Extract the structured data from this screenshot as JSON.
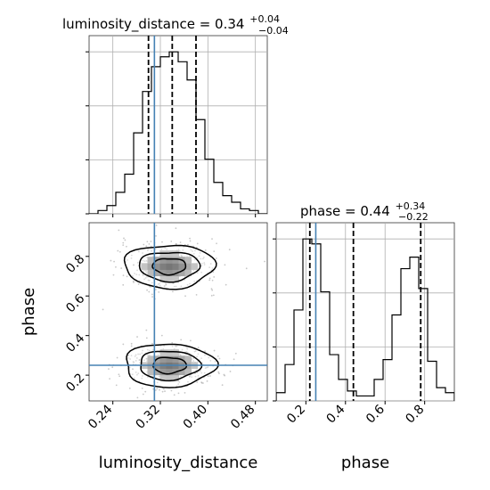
{
  "chart_data": {
    "type": "corner",
    "parameters": [
      {
        "name": "luminosity_distance",
        "xlabel": "luminosity_distance",
        "title_main": "luminosity_distance = 0.34",
        "title_sup": "+0.04",
        "title_sub": "−0.04",
        "xlim": [
          0.2,
          0.5
        ],
        "ticks": [
          0.24,
          0.32,
          0.4,
          0.48
        ],
        "tick_labels": [
          "0.24",
          "0.32",
          "0.40",
          "0.48"
        ],
        "quantiles": [
          0.3,
          0.34,
          0.38
        ],
        "truth": 0.31,
        "hist_bins": [
          0.2,
          0.215,
          0.23,
          0.245,
          0.26,
          0.275,
          0.29,
          0.305,
          0.32,
          0.335,
          0.35,
          0.365,
          0.38,
          0.395,
          0.41,
          0.425,
          0.44,
          0.455,
          0.47,
          0.485,
          0.5
        ],
        "hist_counts": [
          0,
          2,
          5,
          13,
          24,
          49,
          74,
          89,
          95,
          98,
          92,
          81,
          57,
          33,
          19,
          11,
          7,
          3,
          2,
          0
        ]
      },
      {
        "name": "phase",
        "xlabel": "phase",
        "ylabel": "phase",
        "title_main": "phase = 0.44",
        "title_sup": "+0.34",
        "title_sub": "−0.22",
        "xlim": [
          0.05,
          0.95
        ],
        "ticks": [
          0.2,
          0.4,
          0.6,
          0.8
        ],
        "tick_labels": [
          "0.2",
          "0.4",
          "0.6",
          "0.8"
        ],
        "quantiles": [
          0.22,
          0.44,
          0.78
        ],
        "truth": 0.25,
        "hist_bins": [
          0.05,
          0.095,
          0.14,
          0.185,
          0.23,
          0.275,
          0.32,
          0.365,
          0.41,
          0.455,
          0.5,
          0.545,
          0.59,
          0.635,
          0.68,
          0.725,
          0.77,
          0.815,
          0.86,
          0.905,
          0.95
        ],
        "hist_counts": [
          5,
          22,
          55,
          98,
          95,
          66,
          28,
          13,
          6,
          3,
          3,
          13,
          25,
          52,
          80,
          87,
          68,
          24,
          8,
          5
        ]
      }
    ],
    "joint": {
      "x": "luminosity_distance",
      "y": "phase",
      "xlim": [
        0.2,
        0.5
      ],
      "ylim": [
        0.07,
        0.97
      ],
      "modes": [
        {
          "x": 0.335,
          "y": 0.75,
          "sx": 0.033,
          "sy": 0.05
        },
        {
          "x": 0.335,
          "y": 0.25,
          "sx": 0.033,
          "sy": 0.05
        }
      ],
      "truth": {
        "x": 0.31,
        "y": 0.25
      },
      "grid": false
    }
  }
}
